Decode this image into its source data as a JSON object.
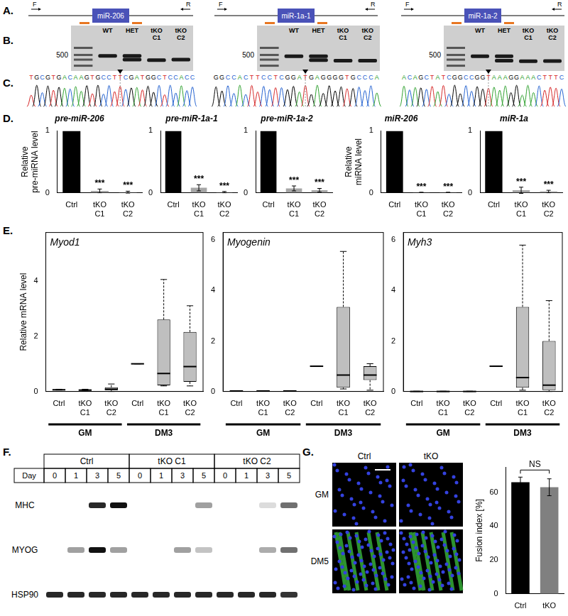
{
  "panel_labels": [
    "A.",
    "B.",
    "C.",
    "D.",
    "E.",
    "F.",
    "G."
  ],
  "panel_A": {
    "loci": [
      {
        "name": "miR-206",
        "forward_primer": "F",
        "reverse_primer": "R"
      },
      {
        "name": "miR-1a-1",
        "forward_primer": "F",
        "reverse_primer": "R"
      },
      {
        "name": "miR-1a-2",
        "forward_primer": "F",
        "reverse_primer": "R"
      }
    ]
  },
  "panel_B": {
    "marker": 500,
    "ladder_bands": [
      700,
      500,
      400,
      300
    ],
    "lanes": [
      "WT",
      "HET",
      "tKO C1",
      "tKO C2"
    ],
    "gels": [
      [
        [
          480
        ],
        [
          480,
          400
        ],
        [
          390
        ],
        [
          400
        ]
      ],
      [
        [
          470
        ],
        [
          470,
          390
        ],
        [
          380
        ],
        [
          380
        ]
      ],
      [
        [
          470
        ],
        [
          470,
          380
        ],
        [
          370
        ],
        [
          375
        ]
      ]
    ]
  },
  "panel_C": {
    "traces": [
      {
        "sequence": "TGCGTGACAAGTGCCTTCGATGGCTCCACC",
        "cut_index": 16
      },
      {
        "sequence": "GGCCACTTCCTCGGATGAGGGGTGCCCA",
        "cut_index": 15
      },
      {
        "sequence": "ACAGCTATCGGCCGGTAAAGGAAACTTTC",
        "cut_index": 15
      }
    ]
  },
  "chart_data": [
    {
      "type": "bar",
      "title": "pre-miR-206",
      "y_label": "Relative pre-miRNA level",
      "categories": [
        "Ctrl",
        "tKO C1",
        "tKO C2"
      ],
      "values": [
        1,
        0.03,
        0.01
      ],
      "errors": [
        null,
        0.03,
        0.015
      ],
      "significance": [
        null,
        "***",
        "***"
      ],
      "colors": [
        "#000000",
        "#a6a6a6",
        "#a6a6a6"
      ],
      "ylim": [
        0,
        1
      ],
      "yticks": [
        0,
        1
      ]
    },
    {
      "type": "bar",
      "title": "pre-miR-1a-1",
      "categories": [
        "Ctrl",
        "tKO C1",
        "tKO C2"
      ],
      "values": [
        1,
        0.08,
        0.01
      ],
      "errors": [
        null,
        0.05,
        0.01
      ],
      "significance": [
        null,
        "***",
        "***"
      ],
      "colors": [
        "#000000",
        "#a6a6a6",
        "#a6a6a6"
      ],
      "ylim": [
        0,
        1
      ],
      "yticks": [
        0,
        1
      ]
    },
    {
      "type": "bar",
      "title": "pre-miR-1a-2",
      "categories": [
        "Ctrl",
        "tKO C1",
        "tKO C2"
      ],
      "values": [
        1,
        0.07,
        0.04
      ],
      "errors": [
        null,
        0.04,
        0.03
      ],
      "significance": [
        null,
        "***",
        "***"
      ],
      "colors": [
        "#000000",
        "#a6a6a6",
        "#a6a6a6"
      ],
      "ylim": [
        0,
        1
      ],
      "yticks": [
        0,
        1
      ]
    },
    {
      "type": "bar",
      "title": "miR-206",
      "y_label": "Relative miRNA level",
      "categories": [
        "Ctrl",
        "tKO C1",
        "tKO C2"
      ],
      "values": [
        1,
        0.005,
        0.005
      ],
      "errors": [
        null,
        0.003,
        0.003
      ],
      "significance": [
        null,
        "***",
        "***"
      ],
      "colors": [
        "#000000",
        "#a6a6a6",
        "#a6a6a6"
      ],
      "ylim": [
        0,
        1
      ],
      "yticks": [
        0,
        1
      ]
    },
    {
      "type": "bar",
      "title": "miR-1a",
      "categories": [
        "Ctrl",
        "tKO C1",
        "tKO C2"
      ],
      "values": [
        1,
        0.04,
        0.02
      ],
      "errors": [
        null,
        0.05,
        0.02
      ],
      "significance": [
        null,
        "***",
        "***"
      ],
      "colors": [
        "#000000",
        "#a6a6a6",
        "#a6a6a6"
      ],
      "ylim": [
        0,
        1
      ],
      "yticks": [
        0,
        1
      ]
    },
    {
      "type": "boxplot",
      "title": "Myod1",
      "y_label": "Relative mRNA level",
      "categories": [
        "Ctrl",
        "tKO C1",
        "tKO C2",
        "Ctrl",
        "tKO C1",
        "tKO C2"
      ],
      "groups": [
        "GM",
        "DM3"
      ],
      "color": "#bfbfbf",
      "boxes": [
        {
          "min": 0.05,
          "q1": 0.05,
          "median": 0.06,
          "q3": 0.07,
          "max": 0.08
        },
        {
          "min": 0.02,
          "q1": 0.03,
          "median": 0.05,
          "q3": 0.06,
          "max": 0.08
        },
        {
          "min": 0.0,
          "q1": 0.05,
          "median": 0.08,
          "q3": 0.15,
          "max": 0.27
        },
        {
          "min": 1,
          "q1": 1,
          "median": 1,
          "q3": 1,
          "max": 1
        },
        {
          "min": 0.2,
          "q1": 0.22,
          "median": 0.65,
          "q3": 2.6,
          "max": 4.05
        },
        {
          "min": 0.2,
          "q1": 0.35,
          "median": 0.9,
          "q3": 2.15,
          "max": 3.1
        }
      ],
      "ylim": [
        0,
        5.75
      ],
      "yticks": [
        0,
        2,
        4
      ]
    },
    {
      "type": "boxplot",
      "title": "Myogenin",
      "categories": [
        "Ctrl",
        "tKO C1",
        "tKO C2",
        "Ctrl",
        "tKO C1",
        "tKO C2"
      ],
      "groups": [
        "GM",
        "DM3"
      ],
      "color": "#bfbfbf",
      "boxes": [
        {
          "min": 0.02,
          "q1": 0.02,
          "median": 0.02,
          "q3": 0.03,
          "max": 0.03
        },
        {
          "min": 0.01,
          "q1": 0.01,
          "median": 0.02,
          "q3": 0.02,
          "max": 0.03
        },
        {
          "min": 0.01,
          "q1": 0.01,
          "median": 0.02,
          "q3": 0.02,
          "max": 0.03
        },
        {
          "min": 1,
          "q1": 1,
          "median": 1,
          "q3": 1,
          "max": 1
        },
        {
          "min": 0.1,
          "q1": 0.15,
          "median": 0.65,
          "q3": 3.35,
          "max": 5.55
        },
        {
          "min": 0.05,
          "q1": 0.45,
          "median": 0.65,
          "q3": 1.0,
          "max": 1.1
        }
      ],
      "ylim": [
        0,
        6.3
      ],
      "yticks": [
        0,
        2,
        4,
        6
      ]
    },
    {
      "type": "boxplot",
      "title": "Myh3",
      "categories": [
        "Ctrl",
        "tKO C1",
        "tKO C2",
        "Ctrl",
        "tKO C1",
        "tKO C2"
      ],
      "groups": [
        "GM",
        "DM3"
      ],
      "color": "#bfbfbf",
      "boxes": [
        {
          "min": 0.0,
          "q1": 0.0,
          "median": 0.0,
          "q3": 0.01,
          "max": 0.01
        },
        {
          "min": 0.0,
          "q1": 0.0,
          "median": 0.0,
          "q3": 0.01,
          "max": 0.01
        },
        {
          "min": 0.0,
          "q1": 0.0,
          "median": 0.0,
          "q3": 0.01,
          "max": 0.01
        },
        {
          "min": 1,
          "q1": 1,
          "median": 1,
          "q3": 1,
          "max": 1
        },
        {
          "min": 0.05,
          "q1": 0.15,
          "median": 0.55,
          "q3": 3.35,
          "max": 5.8
        },
        {
          "min": 0.0,
          "q1": 0.05,
          "median": 0.25,
          "q3": 2.0,
          "max": 3.6
        }
      ],
      "ylim": [
        0,
        6.3
      ],
      "yticks": [
        0,
        2,
        4,
        6
      ]
    },
    {
      "type": "bar",
      "y_label": "Fusion index [%]",
      "categories": [
        "Ctrl",
        "tKO"
      ],
      "values": [
        66,
        63
      ],
      "errors": [
        3,
        5
      ],
      "comparison": "NS",
      "colors": [
        "#000000",
        "#808080"
      ],
      "ylim": [
        0,
        75
      ],
      "yticks": [
        0,
        20,
        40,
        60
      ]
    }
  ],
  "panel_F": {
    "groups": [
      "Ctrl",
      "tKO C1",
      "tKO C2"
    ],
    "day_label": "Day",
    "days": [
      0,
      1,
      3,
      5
    ],
    "rows": [
      {
        "name": "MHC",
        "intensity": [
          [
            0,
            0,
            0.9,
            1
          ],
          [
            0,
            0,
            0,
            0.4
          ],
          [
            0,
            0,
            0.15,
            0.6
          ]
        ]
      },
      {
        "name": "MYOG",
        "intensity": [
          [
            0,
            0.4,
            1,
            0.4
          ],
          [
            0,
            0,
            0.4,
            0.25
          ],
          [
            0,
            0,
            0.35,
            0.6
          ]
        ]
      },
      {
        "name": "HSP90",
        "intensity": [
          [
            0.9,
            0.9,
            0.9,
            0.9
          ],
          [
            0.9,
            0.9,
            0.9,
            0.9
          ],
          [
            0.9,
            0.9,
            0.9,
            0.85
          ]
        ]
      }
    ]
  },
  "panel_G": {
    "columns": [
      "Ctrl",
      "tKO"
    ],
    "rows": [
      "GM",
      "DM5"
    ]
  }
}
